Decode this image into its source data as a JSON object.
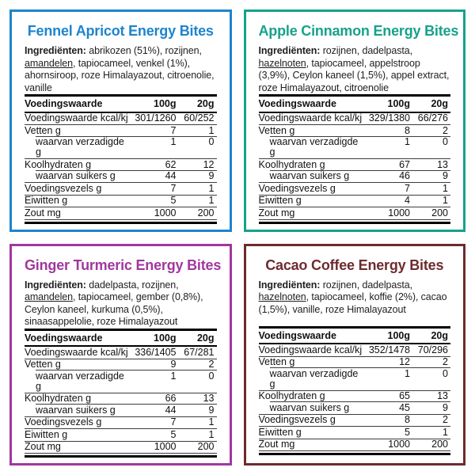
{
  "page": {
    "background": "#ffffff"
  },
  "cards": [
    {
      "id": "fennel-apricot",
      "title": "Fennel Apricot Energy Bites",
      "accent": "#1d84cd",
      "ingredients": {
        "label": "Ingrediënten:",
        "before_allergen": " abrikozen (51%), rozijnen, ",
        "allergen": "amandelen",
        "after_allergen": ", tapiocameel, venkel (1%), ahornsiroop, roze Himalayazout, citroenolie, vanille"
      },
      "table": {
        "col_label": "Voedingswaarde",
        "col_100g": "100g",
        "col_20g": "20g",
        "rows": [
          {
            "label": "Voedingswaarde kcal/kj",
            "per100": "301/1260",
            "per20": "60/252",
            "indent": false
          },
          {
            "label": "Vetten g",
            "per100": "7",
            "per20": "1",
            "indent": false
          },
          {
            "label": "waarvan verzadigde g",
            "per100": "1",
            "per20": "0",
            "indent": true
          },
          {
            "label": "Koolhydraten g",
            "per100": "62",
            "per20": "12",
            "indent": false
          },
          {
            "label": "waarvan suikers g",
            "per100": "44",
            "per20": "9",
            "indent": true
          },
          {
            "label": "Voedingsvezels g",
            "per100": "7",
            "per20": "1",
            "indent": false
          },
          {
            "label": "Eiwitten g",
            "per100": "5",
            "per20": "1",
            "indent": false
          },
          {
            "label": "Zout mg",
            "per100": "1000",
            "per20": "200",
            "indent": false
          }
        ]
      }
    },
    {
      "id": "apple-cinnamon",
      "title": "Apple Cinnamon Energy Bites",
      "accent": "#16a28a",
      "ingredients": {
        "label": "Ingrediënten:",
        "before_allergen": " rozijnen, dadelpasta, ",
        "allergen": "hazelnoten",
        "after_allergen": ", tapiocameel, appelstroop (3,9%), Ceylon kaneel (1,5%), appel extract, roze Himalayazout, citroenolie"
      },
      "table": {
        "col_label": "Voedingswaarde",
        "col_100g": "100g",
        "col_20g": "20g",
        "rows": [
          {
            "label": "Voedingswaarde kcal/kj",
            "per100": "329/1380",
            "per20": "66/276",
            "indent": false
          },
          {
            "label": "Vetten g",
            "per100": "8",
            "per20": "2",
            "indent": false
          },
          {
            "label": "waarvan verzadigde g",
            "per100": "1",
            "per20": "0",
            "indent": true
          },
          {
            "label": "Koolhydraten g",
            "per100": "67",
            "per20": "13",
            "indent": false
          },
          {
            "label": "waarvan suikers g",
            "per100": "46",
            "per20": "9",
            "indent": true
          },
          {
            "label": "Voedingsvezels g",
            "per100": "7",
            "per20": "1",
            "indent": false
          },
          {
            "label": "Eiwitten g",
            "per100": "4",
            "per20": "1",
            "indent": false
          },
          {
            "label": "Zout mg",
            "per100": "1000",
            "per20": "200",
            "indent": false
          }
        ]
      }
    },
    {
      "id": "ginger-turmeric",
      "title": "Ginger Turmeric Energy Bites",
      "accent": "#a1379e",
      "ingredients": {
        "label": "Ingrediënten:",
        "before_allergen": " dadelpasta, rozijnen, ",
        "allergen": "amandelen",
        "after_allergen": ", tapiocameel, gember (0,8%), Ceylon kaneel, kurkuma (0,5%), sinaasappelolie, roze Himalayazout"
      },
      "table": {
        "col_label": "Voedingswaarde",
        "col_100g": "100g",
        "col_20g": "20g",
        "rows": [
          {
            "label": "Voedingswaarde kcal/kj",
            "per100": "336/1405",
            "per20": "67/281",
            "indent": false
          },
          {
            "label": "Vetten g",
            "per100": "9",
            "per20": "2",
            "indent": false
          },
          {
            "label": "waarvan verzadigde g",
            "per100": "1",
            "per20": "0",
            "indent": true
          },
          {
            "label": "Koolhydraten g",
            "per100": "66",
            "per20": "13",
            "indent": false
          },
          {
            "label": "waarvan suikers g",
            "per100": "44",
            "per20": "9",
            "indent": true
          },
          {
            "label": "Voedingsvezels g",
            "per100": "7",
            "per20": "1",
            "indent": false
          },
          {
            "label": "Eiwitten g",
            "per100": "5",
            "per20": "1",
            "indent": false
          },
          {
            "label": "Zout mg",
            "per100": "1000",
            "per20": "200",
            "indent": false
          }
        ]
      }
    },
    {
      "id": "cacao-coffee",
      "title": "Cacao Coffee Energy Bites",
      "accent": "#6e2b2e",
      "ingredients": {
        "label": "Ingrediënten:",
        "before_allergen": " rozijnen, dadelpasta, ",
        "allergen": "hazelnoten",
        "after_allergen": ", tapiocameel, koffie (2%), cacao (1,5%), vanille, roze Himalayazout"
      },
      "table": {
        "col_label": "Voedingswaarde",
        "col_100g": "100g",
        "col_20g": "20g",
        "rows": [
          {
            "label": "Voedingswaarde kcal/kj",
            "per100": "352/1478",
            "per20": "70/296",
            "indent": false
          },
          {
            "label": "Vetten g",
            "per100": "12",
            "per20": "2",
            "indent": false
          },
          {
            "label": "waarvan verzadigde g",
            "per100": "1",
            "per20": "0",
            "indent": true
          },
          {
            "label": "Koolhydraten g",
            "per100": "65",
            "per20": "13",
            "indent": false
          },
          {
            "label": "waarvan suikers g",
            "per100": "45",
            "per20": "9",
            "indent": true
          },
          {
            "label": "Voedingsvezels g",
            "per100": "8",
            "per20": "2",
            "indent": false
          },
          {
            "label": "Eiwitten g",
            "per100": "5",
            "per20": "1",
            "indent": false
          },
          {
            "label": "Zout mg",
            "per100": "1000",
            "per20": "200",
            "indent": false
          }
        ]
      }
    }
  ]
}
